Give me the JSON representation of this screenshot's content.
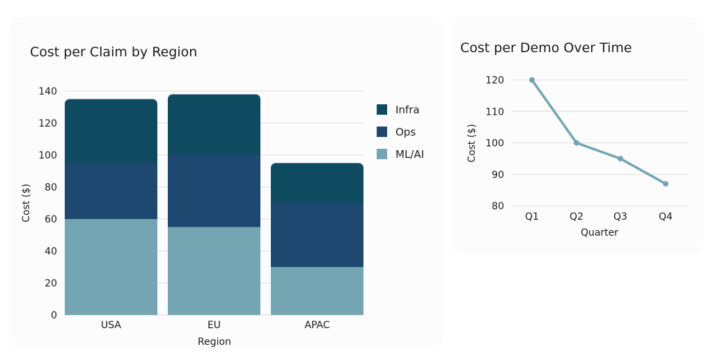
{
  "colors": {
    "Infra": "#0e4a60",
    "Ops": "#1f4870",
    "ML/AI": "#73a5b3",
    "line": "#73a5b3",
    "grid": "#dddddd"
  },
  "chart_data": [
    {
      "type": "bar",
      "stacked": true,
      "title": "Cost per Claim by Region",
      "xlabel": "Region",
      "ylabel": "Cost ($)",
      "ylim": [
        0,
        140
      ],
      "yticks": [
        0,
        20,
        40,
        60,
        80,
        100,
        120,
        140
      ],
      "grid": true,
      "legend_position": "right",
      "categories": [
        "USA",
        "EU",
        "APAC"
      ],
      "series": [
        {
          "name": "ML/AI",
          "values": [
            60,
            55,
            30
          ]
        },
        {
          "name": "Ops",
          "values": [
            35,
            45,
            40
          ]
        },
        {
          "name": "Infra",
          "values": [
            40,
            38,
            25
          ]
        }
      ],
      "legend": [
        "Infra",
        "Ops",
        "ML/AI"
      ]
    },
    {
      "type": "line",
      "title": "Cost per Demo Over Time",
      "xlabel": "Quarter",
      "ylabel": "Cost ($)",
      "ylim": [
        80,
        120
      ],
      "yticks": [
        80,
        90,
        100,
        110,
        120
      ],
      "grid": true,
      "categories": [
        "Q1",
        "Q2",
        "Q3",
        "Q4"
      ],
      "series": [
        {
          "name": "Cost per Demo",
          "values": [
            120,
            100,
            95,
            87
          ]
        }
      ]
    }
  ]
}
